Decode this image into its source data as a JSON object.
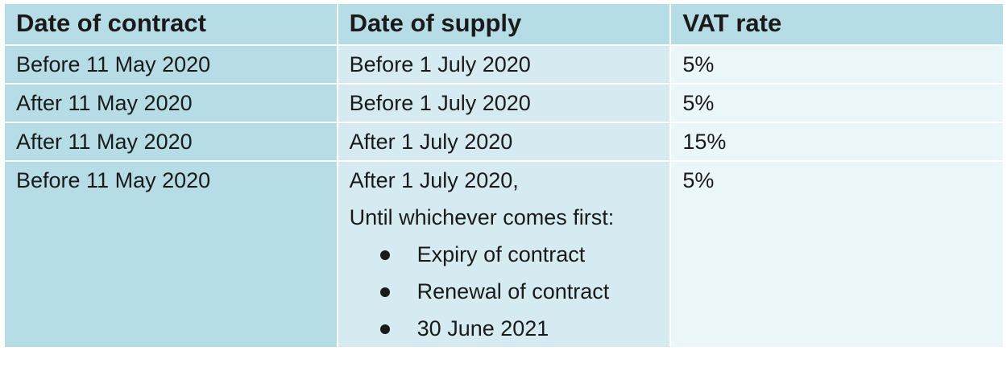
{
  "table": {
    "header": [
      "Date of contract",
      "Date of supply",
      "VAT rate"
    ],
    "rows": [
      [
        "Before 11 May 2020",
        "Before 1 July 2020",
        "5%"
      ],
      [
        "After 11 May 2020",
        "Before 1 July 2020",
        "5%"
      ],
      [
        "After 11 May 2020",
        "After 1 July 2020",
        "15%"
      ],
      [
        "Before 11 May 2020",
        {
          "lines": [
            "After 1 July 2020,",
            "Until whichever comes first:"
          ],
          "bullets": [
            "Expiry of contract",
            "Renewal of contract",
            "30 June 2021"
          ]
        },
        "5%"
      ]
    ]
  }
}
